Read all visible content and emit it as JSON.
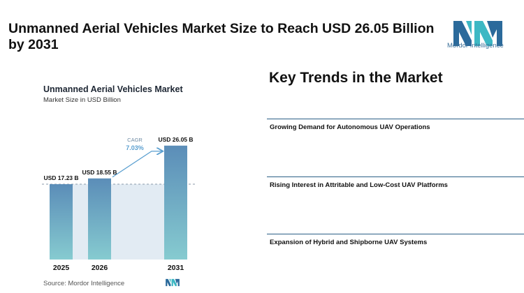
{
  "headline": "Unmanned Aerial Vehicles Market Size to Reach USD 26.05 Billion by 2031",
  "logo": {
    "text": "Mordor Intelligence",
    "icon": "mordor-intelligence-logo-icon"
  },
  "source": "Source: Mordor Intelligence",
  "trends": {
    "heading": "Key Trends in the Market",
    "items": [
      "Growing Demand for Autonomous UAV Operations",
      "Rising Interest in Attritable and Low-Cost UAV Platforms",
      "Expansion of Hybrid and Shipborne UAV Systems"
    ]
  },
  "colors": {
    "bar_top": "#5b8db8",
    "bar_bottom": "#86cbd0",
    "shade": "#e2ebf3",
    "accent": "#5a9fd0",
    "logo_dark": "#2b6a9b",
    "logo_teal": "#3db8c4"
  },
  "chart_data": {
    "type": "bar",
    "title": "Unmanned Aerial Vehicles Market",
    "subtitle": "Market Size in USD Billion",
    "categories": [
      "2025",
      "2026",
      "2031"
    ],
    "values": [
      17.23,
      18.55,
      26.05
    ],
    "data_labels": [
      "USD 17.23 B",
      "USD 18.55 B",
      "USD 26.05 B"
    ],
    "annotation": {
      "label": "CAGR",
      "value": "7.03%"
    },
    "ylim": [
      0,
      30
    ],
    "grid": false,
    "legend": "none"
  }
}
